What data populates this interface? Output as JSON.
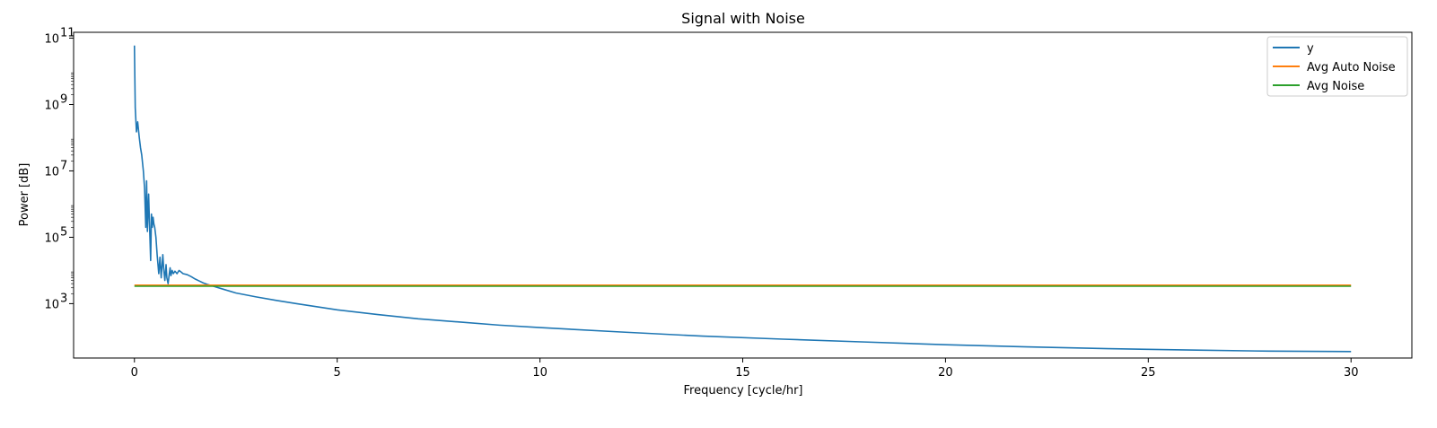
{
  "chart_data": {
    "type": "line",
    "title": "Signal with Noise",
    "xlabel": "Frequency [cycle/hr]",
    "ylabel": "Power [dB]",
    "xlim": [
      -1.5,
      31.5
    ],
    "ylim": [
      23,
      150000000000
    ],
    "yscale": "log",
    "xticks": [
      0,
      5,
      10,
      15,
      20,
      25,
      30
    ],
    "yticks": [
      {
        "value": 1000,
        "base": "10",
        "exp": "3"
      },
      {
        "value": 100000,
        "base": "10",
        "exp": "5"
      },
      {
        "value": 10000000,
        "base": "10",
        "exp": "7"
      },
      {
        "value": 1000000000,
        "base": "10",
        "exp": "9"
      },
      {
        "value": 100000000000,
        "base": "10",
        "exp": "11"
      }
    ],
    "grid": false,
    "legend_position": "top-right",
    "series": [
      {
        "name": "y",
        "color": "#1f77b4",
        "x": [
          0,
          0.02,
          0.05,
          0.08,
          0.12,
          0.15,
          0.18,
          0.22,
          0.25,
          0.28,
          0.3,
          0.32,
          0.35,
          0.37,
          0.4,
          0.42,
          0.44,
          0.46,
          0.48,
          0.5,
          0.53,
          0.56,
          0.6,
          0.63,
          0.66,
          0.7,
          0.72,
          0.75,
          0.78,
          0.8,
          0.83,
          0.86,
          0.88,
          0.9,
          0.93,
          0.96,
          1.0,
          1.05,
          1.1,
          1.15,
          1.2,
          1.3,
          1.4,
          1.5,
          1.6,
          1.7,
          1.8,
          1.9,
          2.0,
          2.2,
          2.5,
          3,
          3.5,
          4,
          5,
          6,
          7,
          8,
          9,
          10,
          12,
          14,
          16,
          18,
          20,
          22,
          24,
          26,
          28,
          30
        ],
        "values": [
          60000000000,
          800000000,
          150000000,
          300000000,
          100000000,
          50000000,
          30000000,
          10000000,
          3000000,
          200000,
          5000000,
          150000,
          2000000,
          300000,
          20000,
          500000,
          200000,
          400000,
          250000,
          200000,
          100000,
          30000,
          8000,
          25000,
          6000,
          30000,
          12000,
          5000,
          15000,
          6000,
          4000,
          8000,
          12000,
          7000,
          10000,
          8000,
          9500,
          8000,
          10000,
          9000,
          8000,
          7500,
          6500,
          5500,
          4800,
          4200,
          3800,
          3500,
          3200,
          2700,
          2100,
          1600,
          1250,
          1000,
          650,
          470,
          350,
          280,
          225,
          190,
          140,
          105,
          85,
          70,
          58,
          50,
          44,
          40,
          37,
          36
        ]
      },
      {
        "name": "Avg Auto Noise",
        "color": "#ff7f0e",
        "x": [
          0,
          30
        ],
        "values": [
          3600,
          3600
        ]
      },
      {
        "name": "Avg Noise",
        "color": "#2ca02c",
        "x": [
          0,
          30
        ],
        "values": [
          3350,
          3350
        ]
      }
    ]
  }
}
